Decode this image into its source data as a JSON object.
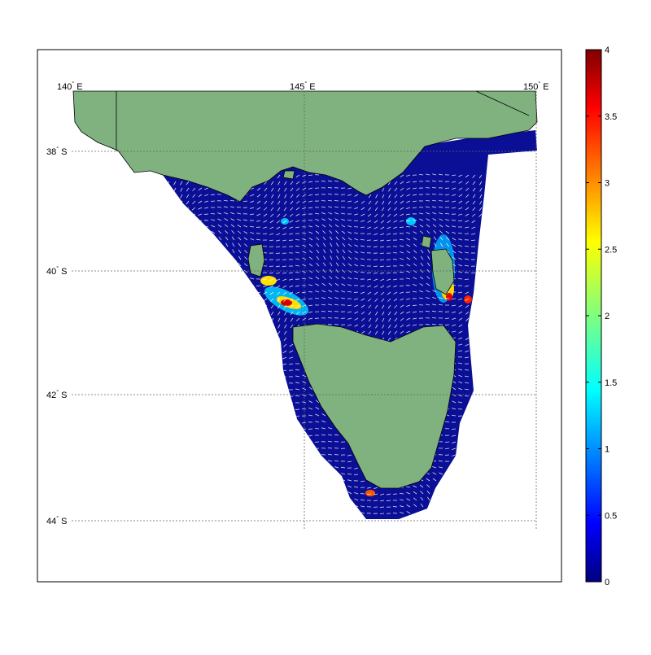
{
  "map": {
    "lon_labels": [
      {
        "deg": "140",
        "hemi": "E"
      },
      {
        "deg": "145",
        "hemi": "E"
      },
      {
        "deg": "150",
        "hemi": "E"
      }
    ],
    "lat_labels": [
      {
        "deg": "38",
        "hemi": "S"
      },
      {
        "deg": "40",
        "hemi": "S"
      },
      {
        "deg": "42",
        "hemi": "S"
      },
      {
        "deg": "44",
        "hemi": "S"
      }
    ],
    "extent": {
      "lon_min": 140,
      "lon_max": 150,
      "lat_min": -44,
      "lat_max": -37
    }
  },
  "colorbar": {
    "ticks": [
      "0",
      "0.5",
      "1",
      "1.5",
      "2",
      "2.5",
      "3",
      "3.5",
      "4"
    ],
    "min": 0,
    "max": 4,
    "colormap": "jet"
  },
  "colors": {
    "land": "#7fb27f",
    "ocean_low": "#0a0f96",
    "vectors": "#ffffff",
    "grid": "#888888"
  }
}
